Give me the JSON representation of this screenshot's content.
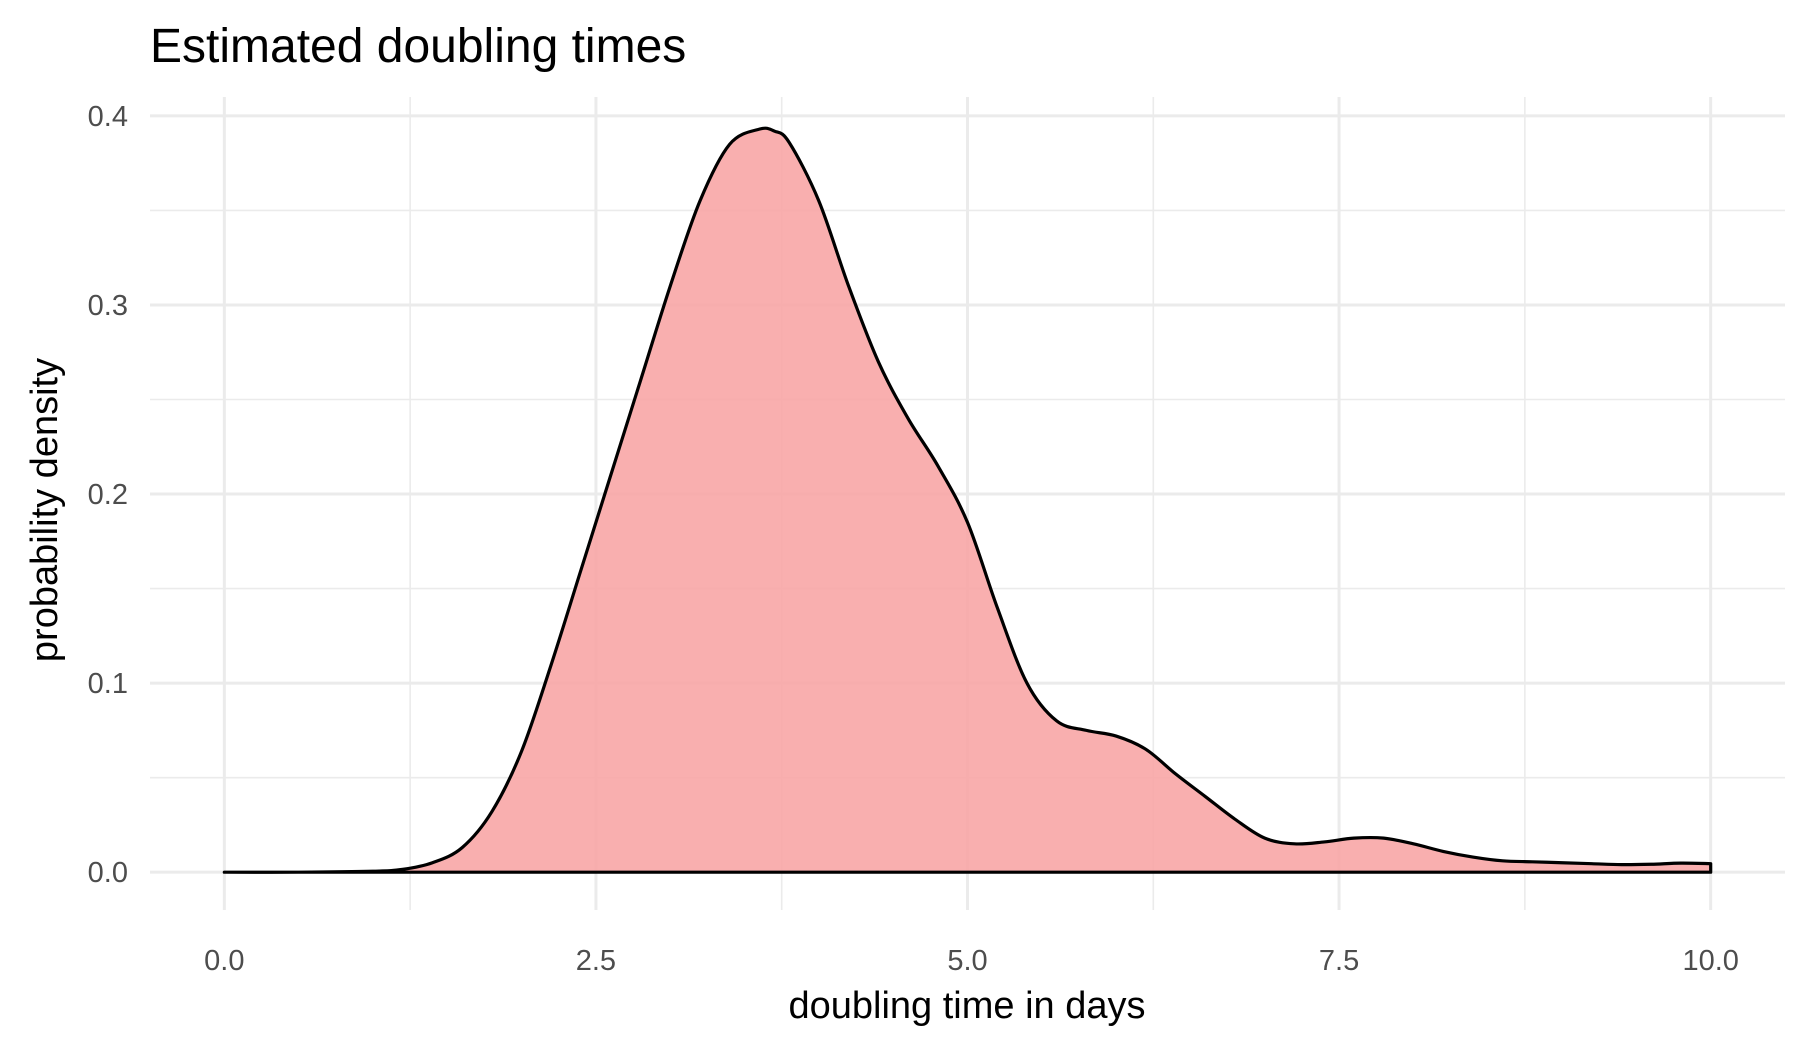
{
  "chart_data": {
    "type": "area",
    "title": "Estimated doubling times",
    "xlabel": "doubling time in days",
    "ylabel": "probability density",
    "xlim": [
      -0.5,
      10.5
    ],
    "ylim": [
      -0.02,
      0.41
    ],
    "x_ticks": [
      0.0,
      2.5,
      5.0,
      7.5,
      10.0
    ],
    "x_tick_labels": [
      "0.0",
      "2.5",
      "5.0",
      "7.5",
      "10.0"
    ],
    "y_ticks": [
      0.0,
      0.1,
      0.2,
      0.3,
      0.4
    ],
    "y_tick_labels": [
      "0.0",
      "0.1",
      "0.2",
      "0.3",
      "0.4"
    ],
    "grid": true,
    "legend": "none",
    "fill_color": "#f8a6a6",
    "line_color": "#000000",
    "series": [
      {
        "x": [
          0.0,
          0.5,
          1.0,
          1.2,
          1.4,
          1.6,
          1.8,
          2.0,
          2.2,
          2.4,
          2.6,
          2.8,
          3.0,
          3.2,
          3.4,
          3.6,
          3.7,
          3.8,
          4.0,
          4.2,
          4.4,
          4.6,
          4.8,
          5.0,
          5.2,
          5.4,
          5.6,
          5.8,
          6.0,
          6.2,
          6.4,
          6.6,
          6.8,
          7.0,
          7.2,
          7.4,
          7.6,
          7.8,
          8.0,
          8.2,
          8.4,
          8.6,
          8.8,
          9.0,
          9.2,
          9.4,
          9.6,
          9.8,
          10.0
        ],
        "y": [
          0.0,
          0.0,
          0.0005,
          0.0015,
          0.005,
          0.013,
          0.032,
          0.064,
          0.11,
          0.16,
          0.21,
          0.26,
          0.31,
          0.355,
          0.385,
          0.393,
          0.392,
          0.386,
          0.355,
          0.31,
          0.27,
          0.24,
          0.215,
          0.185,
          0.14,
          0.1,
          0.08,
          0.075,
          0.072,
          0.065,
          0.052,
          0.04,
          0.028,
          0.018,
          0.015,
          0.016,
          0.018,
          0.018,
          0.015,
          0.011,
          0.008,
          0.006,
          0.0055,
          0.005,
          0.0045,
          0.004,
          0.0042,
          0.0048,
          0.0045
        ]
      }
    ]
  }
}
